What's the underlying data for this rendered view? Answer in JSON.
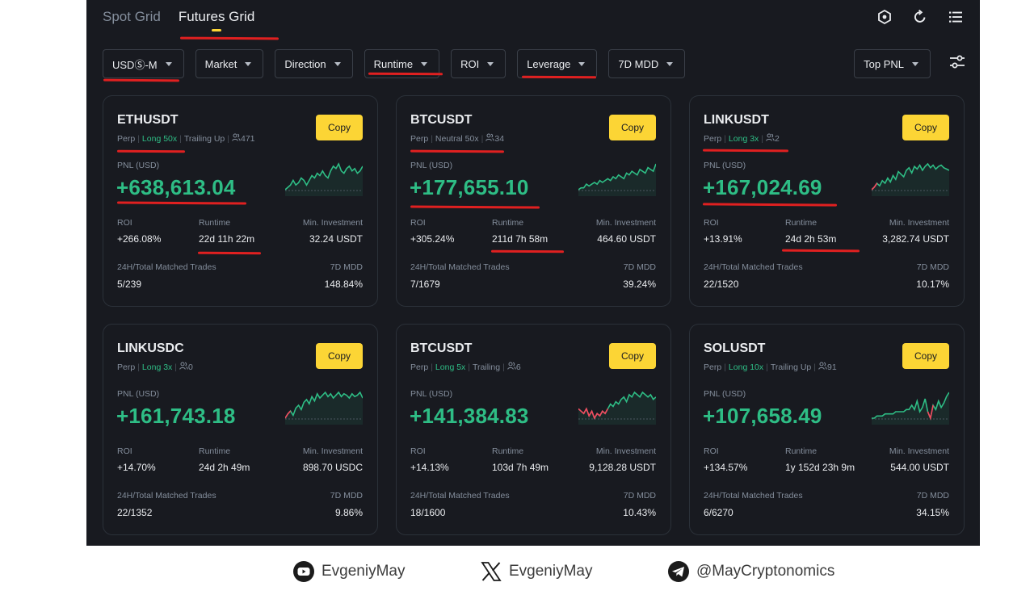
{
  "tabs": [
    {
      "label": "Spot Grid",
      "active": false
    },
    {
      "label": "Futures Grid",
      "active": true
    }
  ],
  "top_icons": [
    "grid-settings-icon",
    "refresh-icon",
    "list-icon"
  ],
  "filters": [
    "USDⓈ-M",
    "Market",
    "Direction",
    "Runtime",
    "ROI",
    "Leverage",
    "7D MDD"
  ],
  "sort": "Top PNL",
  "labels": {
    "copy": "Copy",
    "pnl": "PNL (USD)",
    "roi": "ROI",
    "runtime": "Runtime",
    "min_investment": "Min. Investment",
    "trades": "24H/Total Matched Trades",
    "mdd": "7D MDD"
  },
  "cards": [
    {
      "symbol": "ETHUSDT",
      "type": "Perp",
      "direction": "Long 50x",
      "extra": "Trailing Up",
      "copiers": "471",
      "pnl": "+638,613.04",
      "roi": "+266.08%",
      "runtime": "22d 11h 22m",
      "min_investment": "32.24 USDT",
      "trades": "5/239",
      "mdd": "148.84%",
      "spark": [
        4,
        5,
        6,
        8,
        6,
        7,
        9,
        8,
        6,
        8,
        10,
        9,
        11,
        10,
        12,
        10,
        9,
        12,
        14,
        13,
        15,
        12,
        11,
        13,
        14,
        12,
        13,
        11,
        12,
        14
      ]
    },
    {
      "symbol": "BTCUSDT",
      "type": "Perp",
      "direction": "Neutral 50x",
      "extra": "",
      "copiers": "34",
      "pnl": "+177,655.10",
      "roi": "+305.24%",
      "runtime": "211d 7h 58m",
      "min_investment": "464.60 USDT",
      "trades": "7/1679",
      "mdd": "39.24%",
      "spark": [
        3,
        4,
        4,
        6,
        5,
        6,
        7,
        6,
        8,
        7,
        8,
        9,
        8,
        10,
        9,
        11,
        10,
        9,
        12,
        11,
        13,
        12,
        11,
        14,
        13,
        12,
        15,
        14,
        13,
        17
      ]
    },
    {
      "symbol": "LINKUSDT",
      "type": "Perp",
      "direction": "Long 3x",
      "extra": "",
      "copiers": "2",
      "pnl": "+167,024.69",
      "roi": "+13.91%",
      "runtime": "24d 2h 53m",
      "min_investment": "3,282.74 USDT",
      "trades": "22/1520",
      "mdd": "10.17%",
      "spark": [
        1,
        3,
        6,
        4,
        8,
        6,
        10,
        7,
        12,
        9,
        15,
        13,
        11,
        16,
        18,
        14,
        19,
        17,
        20,
        16,
        19,
        21,
        18,
        20,
        17,
        19,
        20,
        18,
        17,
        16
      ]
    },
    {
      "symbol": "LINKUSDC",
      "type": "Perp",
      "direction": "Long 3x",
      "extra": "",
      "copiers": "0",
      "pnl": "+161,743.18",
      "roi": "+14.70%",
      "runtime": "24d 2h 49m",
      "min_investment": "898.70 USDC",
      "trades": "22/1352",
      "mdd": "9.86%",
      "spark": [
        1,
        4,
        6,
        3,
        8,
        10,
        7,
        12,
        14,
        11,
        16,
        13,
        18,
        15,
        17,
        19,
        16,
        18,
        15,
        17,
        19,
        16,
        18,
        17,
        15,
        18,
        16,
        17,
        19,
        15
      ]
    },
    {
      "symbol": "BTCUSDT",
      "type": "Perp",
      "direction": "Long 5x",
      "extra": "Trailing",
      "copiers": "6",
      "pnl": "+141,384.83",
      "roi": "+14.13%",
      "runtime": "103d 7h 49m",
      "min_investment": "9,128.28 USDT",
      "trades": "18/1600",
      "mdd": "10.43%",
      "spark": [
        10,
        9,
        8,
        10,
        7,
        9,
        6,
        8,
        7,
        9,
        8,
        10,
        12,
        11,
        13,
        12,
        14,
        15,
        13,
        16,
        15,
        17,
        16,
        15,
        17,
        16,
        15,
        16,
        14,
        15
      ]
    },
    {
      "symbol": "SOLUSDT",
      "type": "Perp",
      "direction": "Long 10x",
      "extra": "Trailing Up",
      "copiers": "91",
      "pnl": "+107,658.49",
      "roi": "+134.57%",
      "runtime": "1y 152d 23h 9m",
      "min_investment": "544.00 USDT",
      "trades": "6/6270",
      "mdd": "34.15%",
      "spark": [
        6,
        6,
        7,
        7,
        7,
        8,
        8,
        8,
        8,
        9,
        9,
        9,
        9,
        10,
        10,
        12,
        10,
        14,
        9,
        11,
        15,
        9,
        6,
        12,
        10,
        14,
        11,
        13,
        16,
        18
      ]
    }
  ],
  "colors": {
    "up": "#2ebd85",
    "down": "#f6465d",
    "accent": "#fcd535",
    "bg": "#181a20"
  },
  "socials": [
    {
      "icon": "youtube-icon",
      "handle": "EvgeniyMay"
    },
    {
      "icon": "x-logo-icon",
      "handle": "EvgeniyMay"
    },
    {
      "icon": "telegram-icon",
      "handle": "@MayCryptonomics"
    }
  ]
}
